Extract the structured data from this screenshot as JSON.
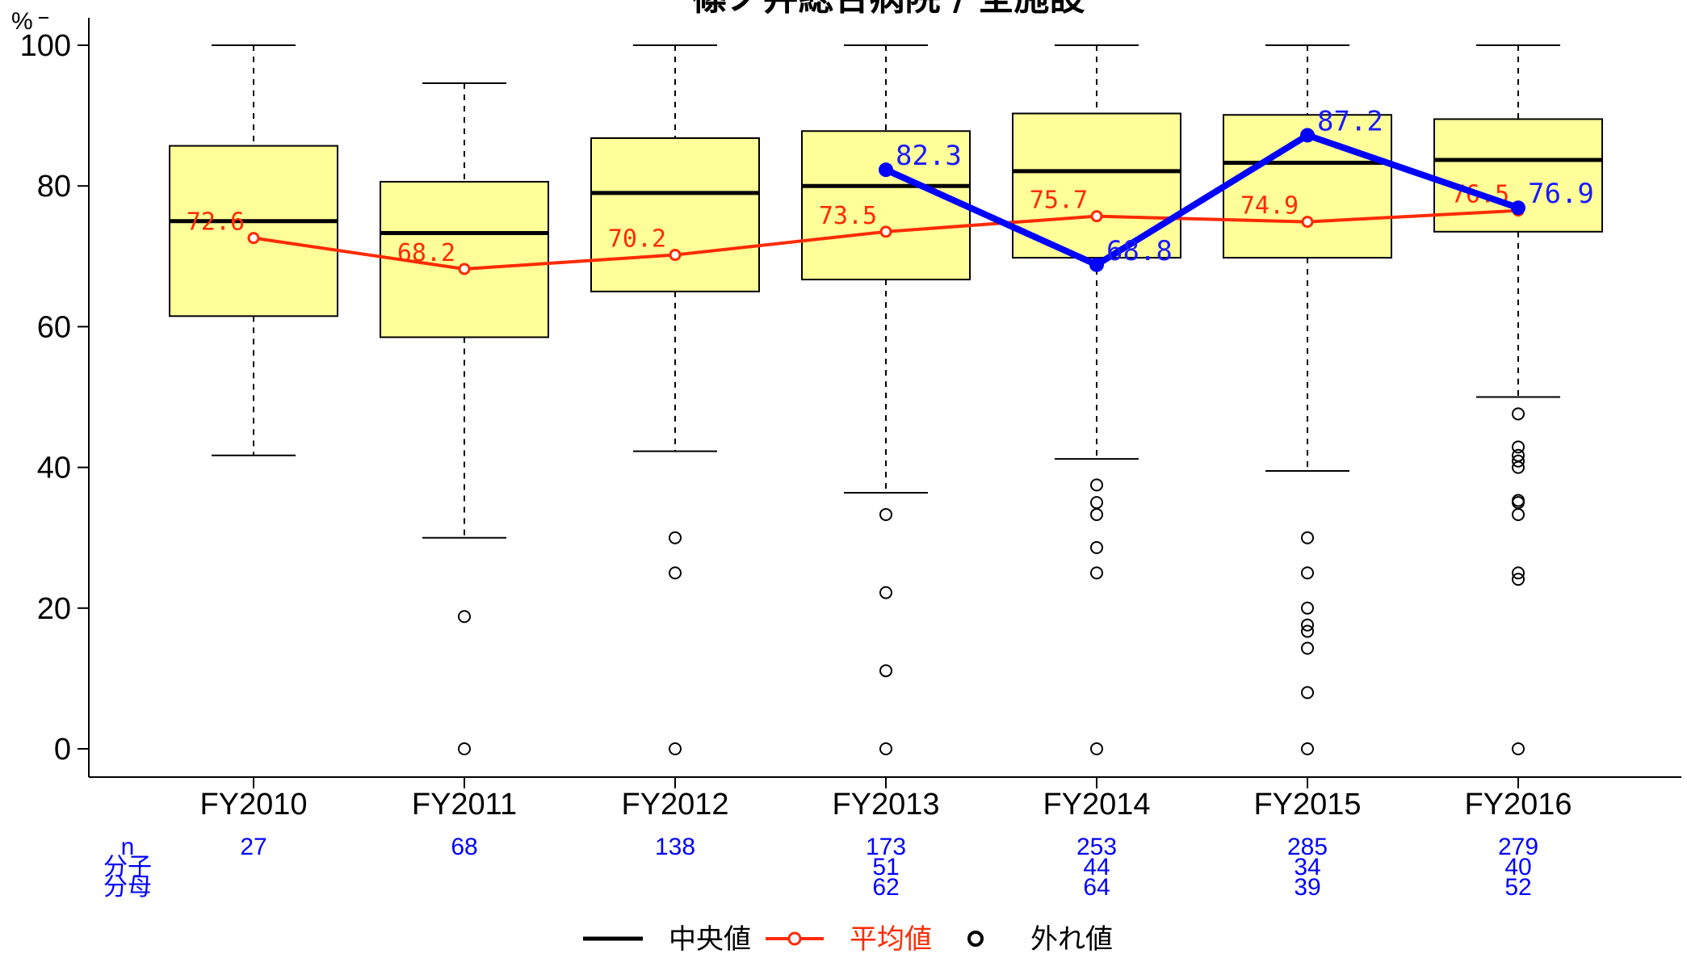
{
  "chart_data": {
    "type": "box",
    "title": "篠ノ井総合病院 / 全施設",
    "y_unit": "%",
    "ylim": [
      0,
      100
    ],
    "yticks": [
      0,
      20,
      40,
      60,
      80,
      100
    ],
    "categories": [
      "FY2010",
      "FY2011",
      "FY2012",
      "FY2013",
      "FY2014",
      "FY2015",
      "FY2016"
    ],
    "boxes": [
      {
        "whisker_low": 41.7,
        "q1": 61.5,
        "median": 75.0,
        "q3": 85.7,
        "whisker_high": 100
      },
      {
        "whisker_low": 30.0,
        "q1": 58.5,
        "median": 73.3,
        "q3": 80.6,
        "whisker_high": 94.6
      },
      {
        "whisker_low": 42.3,
        "q1": 65.0,
        "median": 79.0,
        "q3": 86.8,
        "whisker_high": 100
      },
      {
        "whisker_low": 36.4,
        "q1": 66.7,
        "median": 80.0,
        "q3": 87.8,
        "whisker_high": 100
      },
      {
        "whisker_low": 41.2,
        "q1": 69.8,
        "median": 82.1,
        "q3": 90.3,
        "whisker_high": 100
      },
      {
        "whisker_low": 39.5,
        "q1": 69.8,
        "median": 83.3,
        "q3": 90.1,
        "whisker_high": 100
      },
      {
        "whisker_low": 50.0,
        "q1": 73.5,
        "median": 83.7,
        "q3": 89.5,
        "whisker_high": 100
      }
    ],
    "outliers": [
      [],
      [
        18.8,
        0
      ],
      [
        30.0,
        25.0,
        0
      ],
      [
        33.3,
        22.2,
        11.1,
        0
      ],
      [
        37.5,
        35.0,
        33.3,
        28.6,
        25.0,
        0
      ],
      [
        30.0,
        25.0,
        20.0,
        17.6,
        16.7,
        14.3,
        8.0,
        0
      ],
      [
        47.6,
        42.9,
        41.7,
        40.9,
        40.0,
        35.3,
        35.0,
        33.3,
        25.0,
        24.1,
        0
      ]
    ],
    "series": [
      {
        "name": "平均値",
        "color": "#ff2a00",
        "values": [
          72.6,
          68.2,
          70.2,
          73.5,
          75.7,
          74.9,
          76.5
        ],
        "labels": [
          "72.6",
          "68.2",
          "70.2",
          "73.5",
          "75.7",
          "74.9",
          "76.5"
        ]
      },
      {
        "color": "#0000ff",
        "values": [
          null,
          null,
          null,
          82.3,
          68.8,
          87.2,
          76.9
        ],
        "labels": [
          "",
          "",
          "",
          "82.3",
          "68.8",
          "87.2",
          "76.9"
        ]
      }
    ],
    "counts": {
      "row_labels": [
        "n",
        "分子",
        "分母"
      ],
      "n": [
        "27",
        "68",
        "138",
        "173",
        "253",
        "285",
        "279"
      ],
      "numerator": [
        "",
        "",
        "",
        "51",
        "44",
        "34",
        "40"
      ],
      "denominator": [
        "",
        "",
        "",
        "62",
        "64",
        "39",
        "52"
      ]
    },
    "legend": [
      {
        "label": "中央値",
        "color": "#000000"
      },
      {
        "label": "平均値",
        "color": "#ff2a00"
      },
      {
        "label": "外れ値",
        "color": "#000000"
      }
    ],
    "colors": {
      "box_fill": "#ffff99",
      "median": "#000000",
      "mean": "#ff2a00",
      "facility": "#0000ff",
      "count_text": "#0000ff"
    }
  }
}
